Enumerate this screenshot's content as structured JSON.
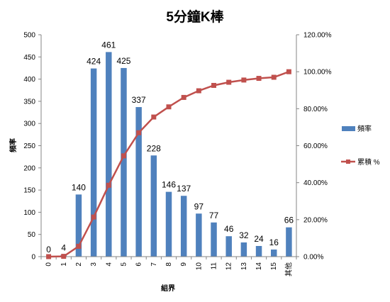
{
  "chart_data": {
    "type": "bar",
    "title": "5分鐘K棒",
    "xlabel": "組界",
    "ylabel": "頻率",
    "categories": [
      "0",
      "1",
      "2",
      "3",
      "4",
      "5",
      "6",
      "7",
      "8",
      "9",
      "10",
      "11",
      "12",
      "13",
      "14",
      "15",
      "其他"
    ],
    "series": [
      {
        "name": "頻率",
        "type": "bar",
        "axis": "left",
        "color": "#4F81BD",
        "values": [
          0,
          4,
          140,
          424,
          461,
          425,
          337,
          228,
          146,
          137,
          97,
          77,
          46,
          32,
          24,
          16,
          66
        ],
        "labels": [
          "0",
          "4",
          "140",
          "424",
          "461",
          "425",
          "337",
          "228",
          "146",
          "137",
          "97",
          "77",
          "46",
          "32",
          "24",
          "16",
          "66"
        ]
      },
      {
        "name": "累積 %",
        "type": "line",
        "axis": "right",
        "color": "#C0504D",
        "marker": "square",
        "values": [
          0.0,
          0.15,
          5.6,
          21.4,
          38.6,
          54.5,
          67.0,
          75.5,
          81.0,
          86.1,
          89.7,
          92.6,
          94.3,
          95.5,
          96.4,
          97.0,
          100.0
        ]
      }
    ],
    "y_left": {
      "min": 0,
      "max": 500,
      "step": 50,
      "ticks": [
        "0",
        "50",
        "100",
        "150",
        "200",
        "250",
        "300",
        "350",
        "400",
        "450",
        "500"
      ]
    },
    "y_right": {
      "min": 0,
      "max": 120,
      "step": 20,
      "ticks": [
        "0.00%",
        "20.00%",
        "40.00%",
        "60.00%",
        "80.00%",
        "100.00%",
        "120.00%"
      ]
    },
    "grid": false,
    "legend_position": "right"
  }
}
